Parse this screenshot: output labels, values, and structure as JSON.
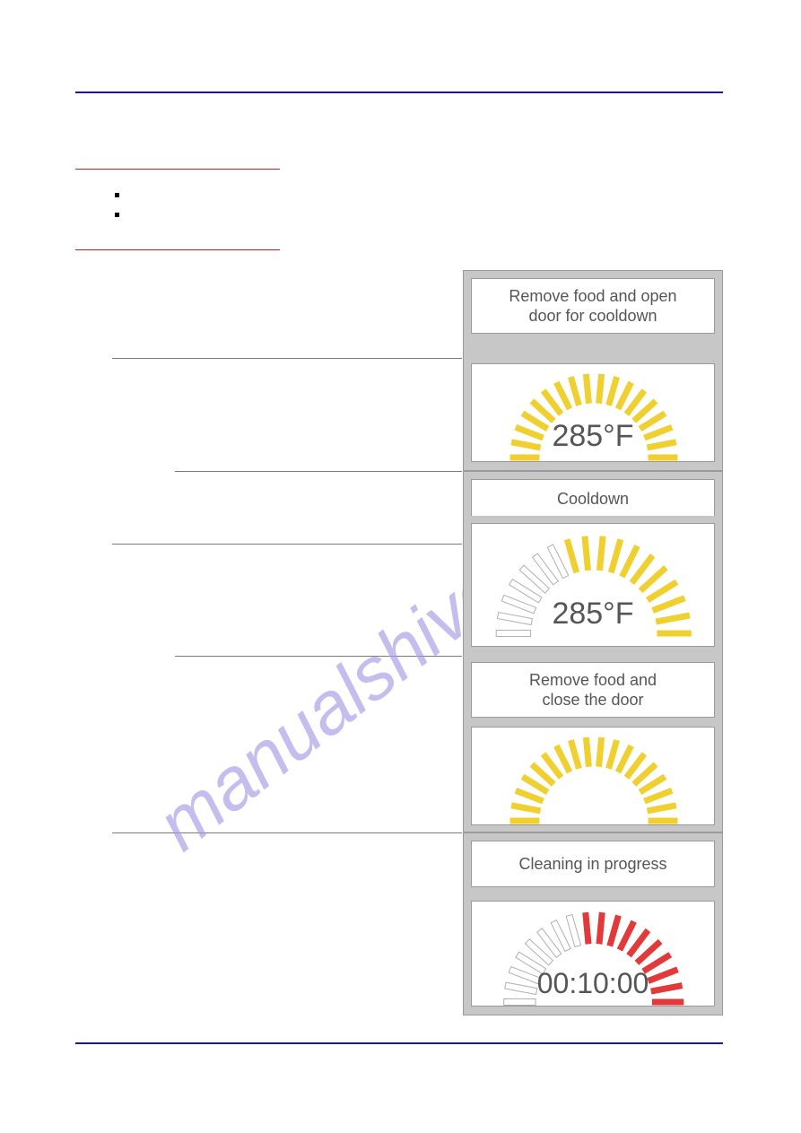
{
  "colors": {
    "rule_blue": "#1a1a8a",
    "rule_red": "#d01c1c",
    "panel_bg": "#c7c7c7",
    "panel_border": "#9a9a9a",
    "msg_text": "#555555",
    "gauge_text": "#565656",
    "tick_yellow": "#f0d030",
    "tick_red": "#e23a3a",
    "tick_empty_stroke": "#b0b0b0",
    "watermark": "#a99be8"
  },
  "watermark_text": "manualshive.com",
  "panels": {
    "p1_msg": {
      "line1": "Remove food and open",
      "line2": "door for cooldown"
    },
    "p2_gauge": {
      "type": "radial-ticks",
      "value_text": "285°F",
      "total_ticks": 18,
      "filled_ticks": 18,
      "fill_color": "#f0d030",
      "empty_stroke": "#b0b0b0"
    },
    "p3_msg": {
      "text": "Cooldown"
    },
    "p4_gauge": {
      "type": "radial-ticks",
      "value_text": "285°F",
      "total_ticks": 18,
      "filled_ticks": 11,
      "fill_side": "right",
      "fill_color": "#f0d030",
      "empty_stroke": "#b0b0b0"
    },
    "p5_msg": {
      "line1": "Remove food and",
      "line2": "close the door"
    },
    "p6_gauge": {
      "type": "radial-ticks",
      "value_text": "",
      "total_ticks": 18,
      "filled_ticks": 18,
      "fill_color": "#f0d030",
      "empty_stroke": "#b0b0b0"
    },
    "p7_msg": {
      "text": "Cleaning in progress"
    },
    "p8_gauge": {
      "type": "radial-ticks",
      "value_text": "00:10:00",
      "total_ticks": 18,
      "filled_ticks": 10,
      "fill_side": "right",
      "fill_color": "#e23a3a",
      "empty_stroke": "#b0b0b0"
    }
  }
}
